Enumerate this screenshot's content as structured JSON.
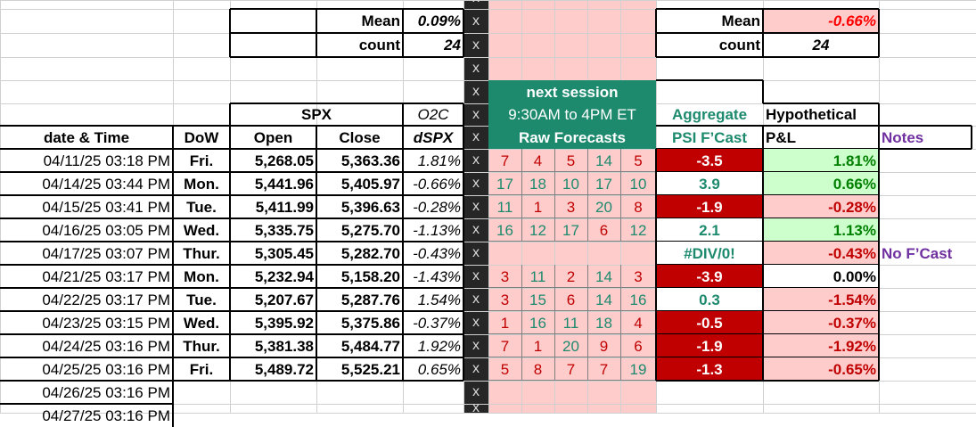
{
  "summary_left": {
    "mean_label": "Mean",
    "mean_value": "0.09%",
    "count_label": "count",
    "count_value": "24"
  },
  "summary_right": {
    "mean_label": "Mean",
    "mean_value": "-0.66%",
    "count_label": "count",
    "count_value": "24"
  },
  "x_marker": "x",
  "headers": {
    "spx": "SPX",
    "o2c": "O2C",
    "next_session": "next session",
    "session_hours": "9:30AM to 4PM ET",
    "aggregate": "Aggregate",
    "hypothetical": "Hypothetical",
    "date_time": "date & Time",
    "dow": "DoW",
    "open": "Open",
    "close": "Close",
    "dspx": "dSPX",
    "raw_forecasts": "Raw Forecasts",
    "psi_fcast": "PSI F’Cast",
    "pnl": "P&L",
    "notes": "Notes"
  },
  "rows": [
    {
      "date": "04/11/25 03:18 PM",
      "dow": "Fri.",
      "open": "5,268.05",
      "close": "5,363.36",
      "dspx": "1.81%",
      "f": [
        "7",
        "4",
        "5",
        "14",
        "5"
      ],
      "psi": "-3.5",
      "pnl": "1.81%",
      "note": ""
    },
    {
      "date": "04/14/25 03:44 PM",
      "dow": "Mon.",
      "open": "5,441.96",
      "close": "5,405.97",
      "dspx": "-0.66%",
      "f": [
        "17",
        "18",
        "10",
        "17",
        "10"
      ],
      "psi": "3.9",
      "pnl": "0.66%",
      "note": ""
    },
    {
      "date": "04/15/25 03:41 PM",
      "dow": "Tue.",
      "open": "5,411.99",
      "close": "5,396.63",
      "dspx": "-0.28%",
      "f": [
        "11",
        "1",
        "3",
        "20",
        "8"
      ],
      "psi": "-1.9",
      "pnl": "-0.28%",
      "note": ""
    },
    {
      "date": "04/16/25 03:05 PM",
      "dow": "Wed.",
      "open": "5,335.75",
      "close": "5,275.70",
      "dspx": "-1.13%",
      "f": [
        "16",
        "12",
        "17",
        "6",
        "12"
      ],
      "psi": "2.1",
      "pnl": "1.13%",
      "note": ""
    },
    {
      "date": "04/17/25 03:07 PM",
      "dow": "Thur.",
      "open": "5,305.45",
      "close": "5,282.70",
      "dspx": "-0.43%",
      "f": [
        "",
        "",
        "",
        "",
        ""
      ],
      "psi": "#DIV/0!",
      "pnl": "-0.43%",
      "note": "No F’Cast"
    },
    {
      "date": "04/21/25 03:17 PM",
      "dow": "Mon.",
      "open": "5,232.94",
      "close": "5,158.20",
      "dspx": "-1.43%",
      "f": [
        "3",
        "11",
        "2",
        "14",
        "3"
      ],
      "psi": "-3.9",
      "pnl": "0.00%",
      "note": ""
    },
    {
      "date": "04/22/25 03:17 PM",
      "dow": "Tue.",
      "open": "5,207.67",
      "close": "5,287.76",
      "dspx": "1.54%",
      "f": [
        "3",
        "15",
        "6",
        "14",
        "16"
      ],
      "psi": "0.3",
      "pnl": "-1.54%",
      "note": ""
    },
    {
      "date": "04/23/25 03:15 PM",
      "dow": "Wed.",
      "open": "5,395.92",
      "close": "5,375.86",
      "dspx": "-0.37%",
      "f": [
        "1",
        "16",
        "11",
        "18",
        "4"
      ],
      "psi": "-0.5",
      "pnl": "-0.37%",
      "note": ""
    },
    {
      "date": "04/24/25 03:16 PM",
      "dow": "Thur.",
      "open": "5,381.38",
      "close": "5,484.77",
      "dspx": "1.92%",
      "f": [
        "7",
        "1",
        "20",
        "9",
        "6"
      ],
      "psi": "-1.9",
      "pnl": "-1.92%",
      "note": ""
    },
    {
      "date": "04/25/25 03:16 PM",
      "dow": "Fri.",
      "open": "5,489.72",
      "close": "5,525.21",
      "dspx": "0.65%",
      "f": [
        "5",
        "8",
        "7",
        "7",
        "19"
      ],
      "psi": "-1.3",
      "pnl": "-0.65%",
      "note": ""
    }
  ],
  "trailing_dates": [
    "04/26/25 03:16 PM",
    "04/27/25 03:16 PM"
  ],
  "colors": {
    "teal": "#1d8a6e",
    "dark_red": "#c00000",
    "pink": "#ffcccc",
    "light_green": "#ccffcc",
    "purple": "#7030a0",
    "red_text": "#ff0000",
    "green_text": "#008000",
    "dark_band": "#262626"
  }
}
